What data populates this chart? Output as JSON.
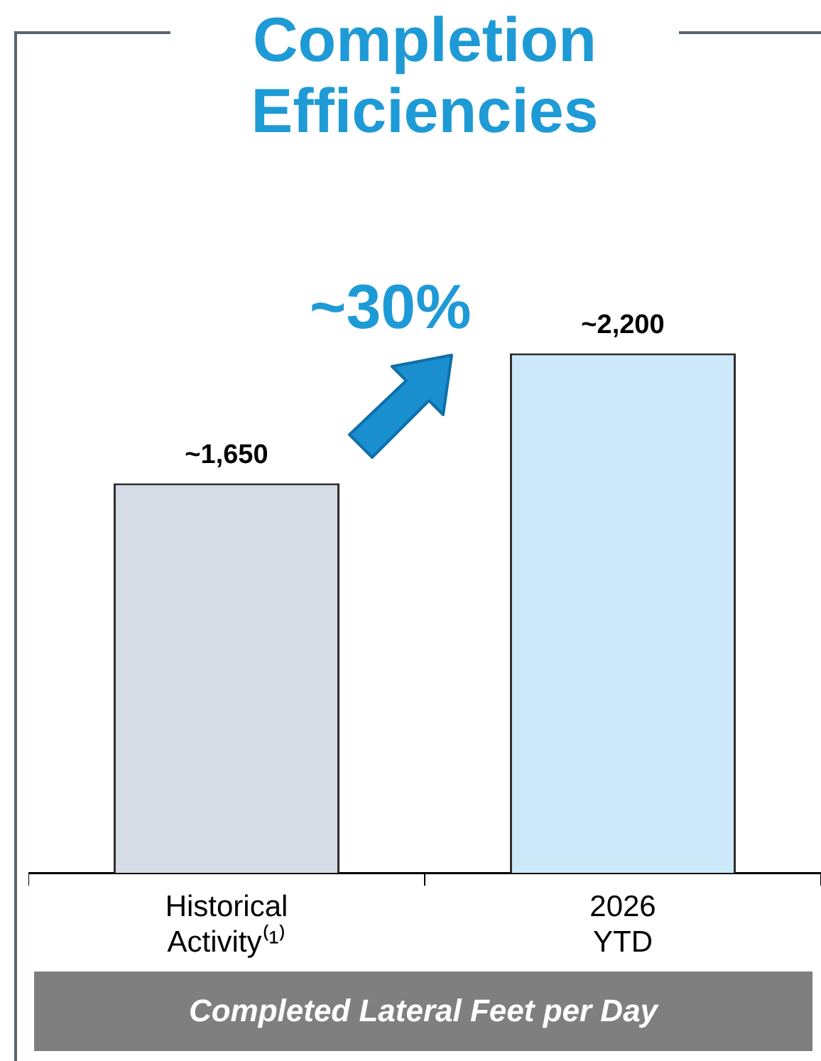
{
  "chart_data": {
    "type": "bar",
    "title": "Completion Efficiencies",
    "xlabel": "Completed Lateral Feet per Day",
    "categories": [
      "Historical Activity⁽¹⁾",
      "2026 YTD"
    ],
    "values": [
      1650,
      2200
    ],
    "colors": [
      "#d6dce5",
      "#cce9fa"
    ],
    "value_labels": [
      "~1,650",
      "~2,200"
    ],
    "annotations": [
      "~30%"
    ],
    "grid": false,
    "legend": false
  }
}
